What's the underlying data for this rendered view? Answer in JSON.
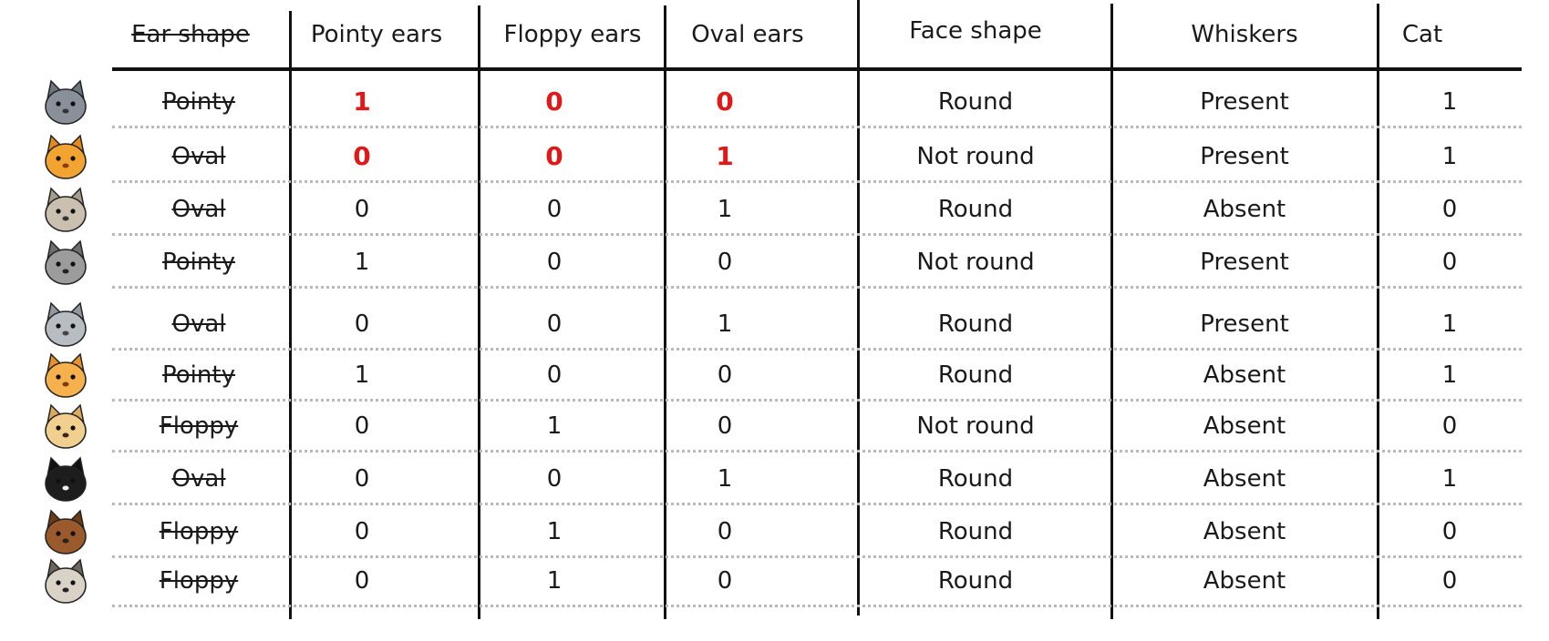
{
  "headers": {
    "ear_shape": "Ear shape",
    "pointy_ears": "Pointy ears",
    "floppy_ears": "Floppy ears",
    "oval_ears": "Oval ears",
    "face_shape": "Face shape",
    "whiskers": "Whiskers",
    "cat": "Cat"
  },
  "colors": {
    "annotation_red": "#e01818",
    "line": "#111111",
    "dotted_separator": "#b9b9b9"
  },
  "rows": [
    {
      "avatar": "gray-cat-icon",
      "ear_shape": "Pointy",
      "pointy": "1",
      "floppy": "0",
      "oval": "0",
      "face": "Round",
      "whiskers": "Present",
      "cat": "1",
      "handwritten": true
    },
    {
      "avatar": "orange-cat-icon",
      "ear_shape": "Oval",
      "pointy": "0",
      "floppy": "0",
      "oval": "1",
      "face": "Not round",
      "whiskers": "Present",
      "cat": "1",
      "handwritten": true
    },
    {
      "avatar": "round-dog-icon",
      "ear_shape": "Oval",
      "pointy": "0",
      "floppy": "0",
      "oval": "1",
      "face": "Round",
      "whiskers": "Absent",
      "cat": "0",
      "handwritten": false
    },
    {
      "avatar": "husky-dog-icon",
      "ear_shape": "Pointy",
      "pointy": "1",
      "floppy": "0",
      "oval": "0",
      "face": "Not round",
      "whiskers": "Present",
      "cat": "0",
      "handwritten": false
    },
    {
      "avatar": "gray-kitten-icon",
      "ear_shape": "Oval",
      "pointy": "0",
      "floppy": "0",
      "oval": "1",
      "face": "Round",
      "whiskers": "Present",
      "cat": "1",
      "handwritten": false
    },
    {
      "avatar": "orange-white-cat-icon",
      "ear_shape": "Pointy",
      "pointy": "1",
      "floppy": "0",
      "oval": "0",
      "face": "Round",
      "whiskers": "Absent",
      "cat": "1",
      "handwritten": false
    },
    {
      "avatar": "golden-puppy-icon",
      "ear_shape": "Floppy",
      "pointy": "0",
      "floppy": "1",
      "oval": "0",
      "face": "Not round",
      "whiskers": "Absent",
      "cat": "0",
      "handwritten": false
    },
    {
      "avatar": "tuxedo-cat-icon",
      "ear_shape": "Oval",
      "pointy": "0",
      "floppy": "0",
      "oval": "1",
      "face": "Round",
      "whiskers": "Absent",
      "cat": "1",
      "handwritten": false
    },
    {
      "avatar": "brown-dog-icon",
      "ear_shape": "Floppy",
      "pointy": "0",
      "floppy": "1",
      "oval": "0",
      "face": "Round",
      "whiskers": "Absent",
      "cat": "0",
      "handwritten": false
    },
    {
      "avatar": "pug-dog-icon",
      "ear_shape": "Floppy",
      "pointy": "0",
      "floppy": "1",
      "oval": "0",
      "face": "Round",
      "whiskers": "Absent",
      "cat": "0",
      "handwritten": false
    }
  ]
}
